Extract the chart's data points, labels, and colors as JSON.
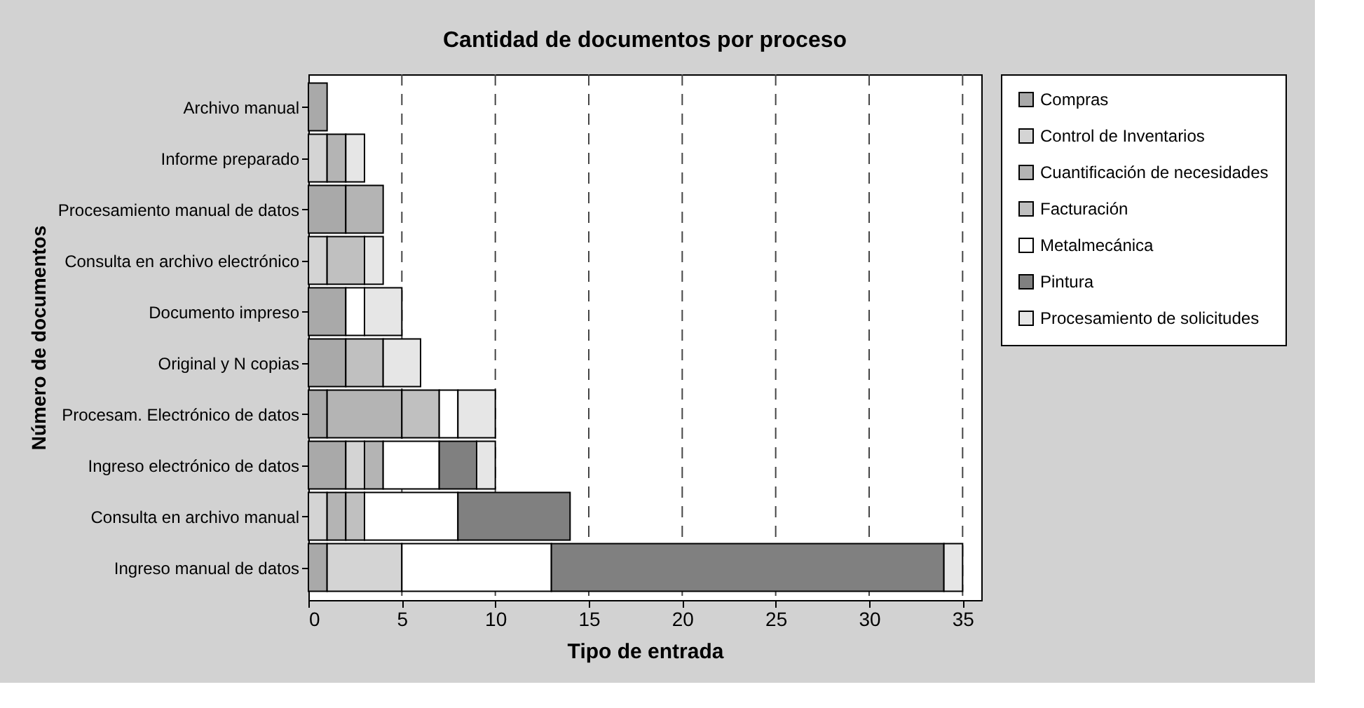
{
  "chart_data": {
    "type": "bar",
    "orientation": "horizontal",
    "stacked": true,
    "title": "Cantidad de documentos por proceso",
    "xlabel": "Tipo de entrada",
    "ylabel": "Número de documentos",
    "categories": [
      "Archivo manual",
      "Informe preparado",
      "Procesamiento manual de datos",
      "Consulta en archivo electrónico",
      "Documento impreso",
      "Original y N copias",
      "Procesam. Electrónico de datos",
      "Ingreso electrónico de datos",
      "Consulta en archivo manual",
      "Ingreso manual de datos"
    ],
    "series": [
      {
        "name": "Compras",
        "color": "#a9a9a9",
        "values": [
          1,
          0,
          2,
          0,
          2,
          2,
          1,
          2,
          0,
          1
        ]
      },
      {
        "name": "Control de Inventarios",
        "color": "#d4d4d4",
        "values": [
          0,
          1,
          0,
          1,
          0,
          0,
          0,
          1,
          1,
          4
        ]
      },
      {
        "name": "Cuantificación de necesidades",
        "color": "#b4b4b4",
        "values": [
          0,
          1,
          2,
          0,
          0,
          0,
          4,
          1,
          1,
          0
        ]
      },
      {
        "name": "Facturación",
        "color": "#c0c0c0",
        "values": [
          0,
          0,
          0,
          2,
          0,
          2,
          2,
          0,
          1,
          0
        ]
      },
      {
        "name": "Metalmecánica",
        "color": "#ffffff",
        "values": [
          0,
          0,
          0,
          0,
          1,
          0,
          1,
          3,
          5,
          8
        ]
      },
      {
        "name": "Pintura",
        "color": "#808080",
        "values": [
          0,
          0,
          0,
          0,
          0,
          0,
          0,
          2,
          6,
          21
        ]
      },
      {
        "name": "Procesamiento de solicitudes",
        "color": "#e6e6e6",
        "values": [
          0,
          1,
          0,
          1,
          2,
          2,
          2,
          1,
          0,
          1
        ]
      }
    ],
    "xlim": [
      0,
      36
    ],
    "xticks": [
      0,
      5,
      10,
      15,
      20,
      25,
      30,
      35
    ],
    "grid": "x",
    "legend": "right"
  }
}
